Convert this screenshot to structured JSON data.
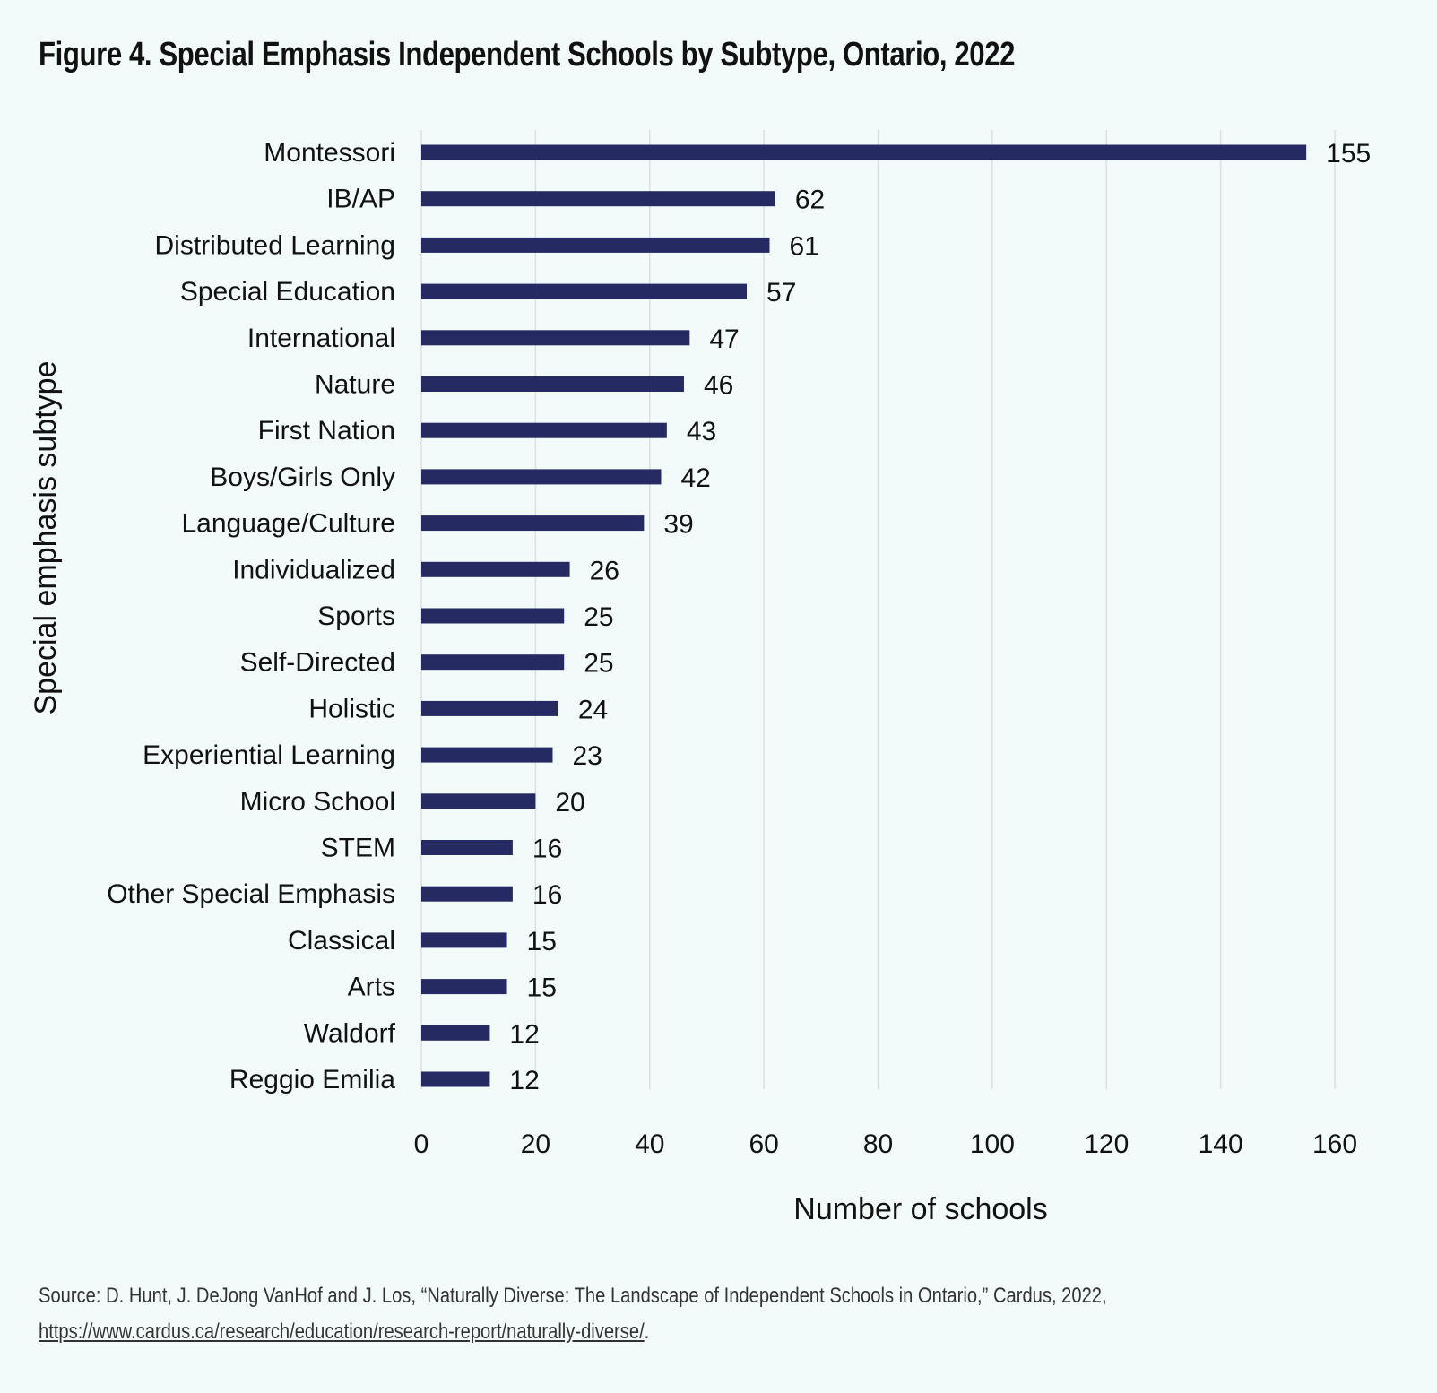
{
  "title": "Figure 4. Special Emphasis Independent Schools by Subtype, Ontario, 2022",
  "source": {
    "prefix": "Source: D. Hunt, J. DeJong VanHof and J. Los, “Naturally Diverse: The Landscape of Independent Schools in Ontario,” Cardus, 2022, ",
    "link": "https://www.cardus.ca/research/education/research-report/naturally-diverse/",
    "suffix": "."
  },
  "colors": {
    "bar": "#252a63",
    "grid": "#dcdfe3",
    "background": "#f3fbfa"
  },
  "chart_data": {
    "type": "bar",
    "orientation": "horizontal",
    "title": "Figure 4. Special Emphasis Independent Schools by Subtype, Ontario, 2022",
    "xlabel": "Number of schools",
    "ylabel": "Special emphasis subtype",
    "xlim": [
      0,
      160
    ],
    "xticks": [
      "0",
      "20",
      "40",
      "60",
      "80",
      "100",
      "120",
      "140",
      "160"
    ],
    "grid": "vertical",
    "data_labels": true,
    "categories": [
      "Montessori",
      "IB/AP",
      "Distributed Learning",
      "Special Education",
      "International",
      "Nature",
      "First Nation",
      "Boys/Girls Only",
      "Language/Culture",
      "Individualized",
      "Sports",
      "Self-Directed",
      "Holistic",
      "Experiential Learning",
      "Micro School",
      "STEM",
      "Other Special Emphasis",
      "Classical",
      "Arts",
      "Waldorf",
      "Reggio Emilia"
    ],
    "values": [
      155,
      62,
      61,
      57,
      47,
      46,
      43,
      42,
      39,
      26,
      25,
      25,
      24,
      23,
      20,
      16,
      16,
      15,
      15,
      12,
      12
    ]
  }
}
